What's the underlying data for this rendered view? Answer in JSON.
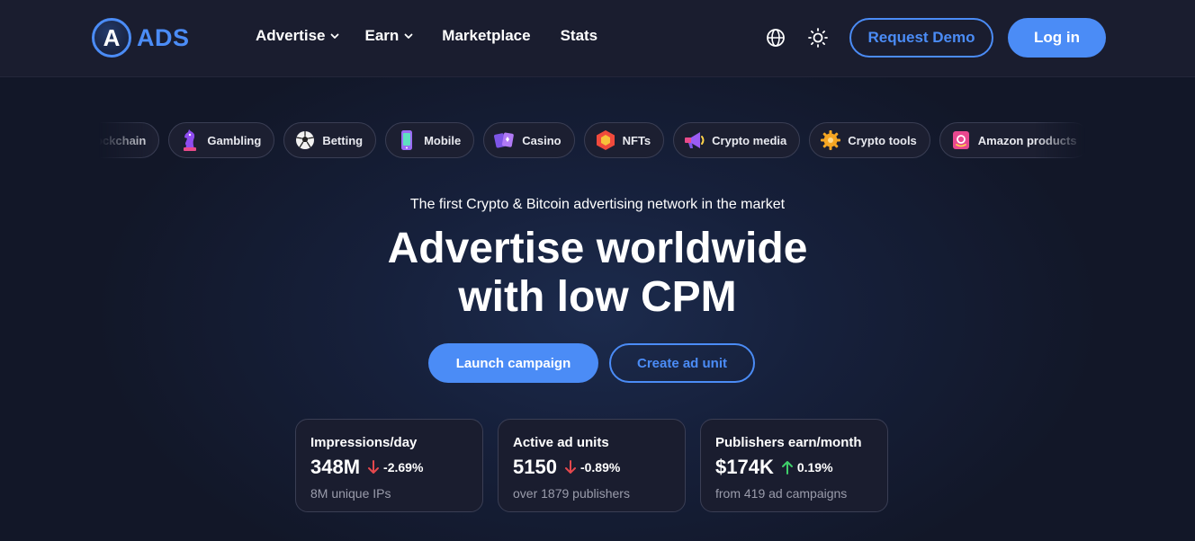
{
  "header": {
    "logo_letter": "A",
    "logo_text": "ADS",
    "nav": [
      {
        "label": "Advertise",
        "has_dropdown": true
      },
      {
        "label": "Earn",
        "has_dropdown": true
      },
      {
        "label": "Marketplace",
        "has_dropdown": false
      },
      {
        "label": "Stats",
        "has_dropdown": false
      }
    ],
    "language_icon": "globe-icon",
    "theme_icon": "sun-icon",
    "request_demo_label": "Request Demo",
    "login_label": "Log in"
  },
  "categories": [
    {
      "label": "Blockchain",
      "icon": "blockchain-icon"
    },
    {
      "label": "Gambling",
      "icon": "chess-knight-icon"
    },
    {
      "label": "Betting",
      "icon": "soccer-ball-icon"
    },
    {
      "label": "Mobile",
      "icon": "mobile-phone-icon"
    },
    {
      "label": "Casino",
      "icon": "playing-cards-icon"
    },
    {
      "label": "NFTs",
      "icon": "nft-hexagon-icon"
    },
    {
      "label": "Crypto media",
      "icon": "megaphone-icon"
    },
    {
      "label": "Crypto tools",
      "icon": "gear-icon"
    },
    {
      "label": "Amazon products",
      "icon": "amazon-icon"
    }
  ],
  "hero": {
    "tagline": "The first Crypto & Bitcoin advertising network in the market",
    "title_line1": "Advertise worldwide",
    "title_line2": "with low CPM",
    "launch_label": "Launch campaign",
    "create_label": "Create ad unit"
  },
  "stats": [
    {
      "label": "Impressions/day",
      "value": "348M",
      "direction": "down",
      "change": "-2.69%",
      "sub": "8M unique IPs"
    },
    {
      "label": "Active ad units",
      "value": "5150",
      "direction": "down",
      "change": "-0.89%",
      "sub": "over 1879 publishers"
    },
    {
      "label": "Publishers earn/month",
      "value": "$174K",
      "direction": "up",
      "change": "0.19%",
      "sub": "from 419 ad campaigns"
    }
  ],
  "colors": {
    "accent": "#4b8cf6",
    "header_bg": "#1a1d2f",
    "down": "#e5484d",
    "up": "#3fcf6a",
    "muted": "#9a9cab"
  }
}
